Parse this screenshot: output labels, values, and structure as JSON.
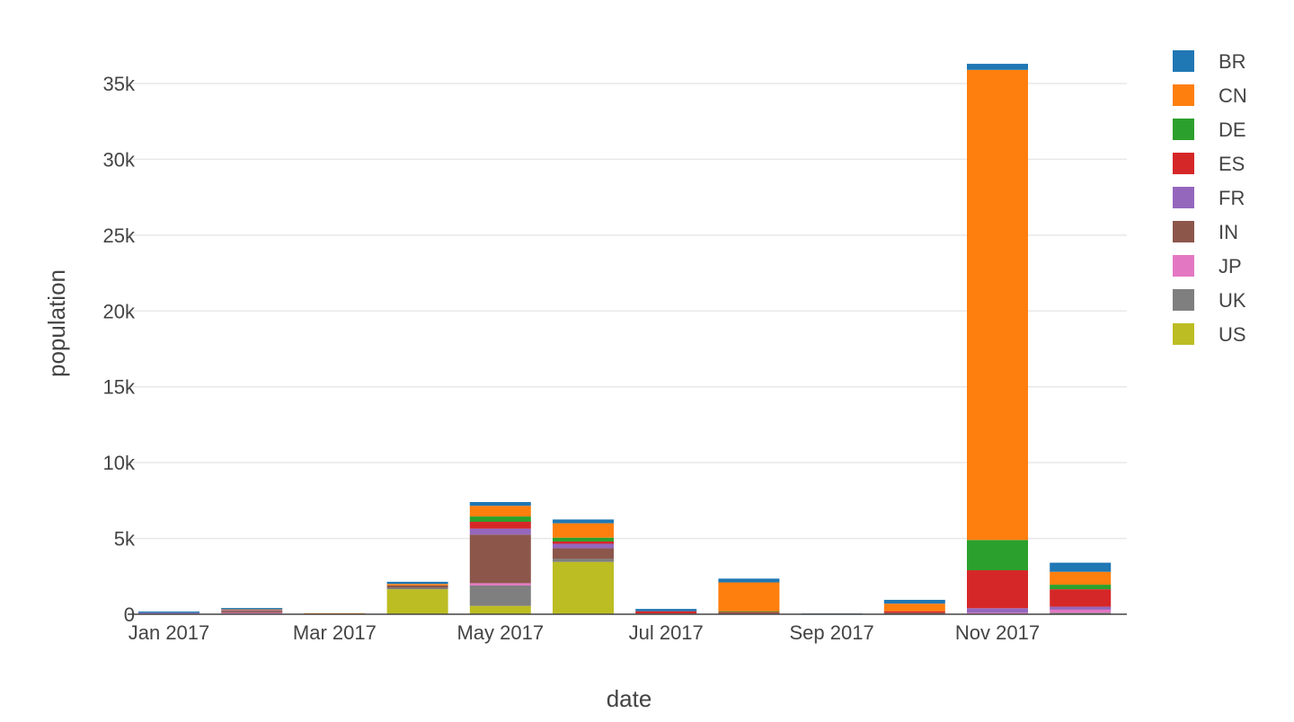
{
  "chart_data": {
    "type": "bar",
    "barmode": "stack",
    "xlabel": "date",
    "ylabel": "population",
    "ylim": [
      0,
      36500
    ],
    "x_tick_labels": [
      "Jan 2017",
      "Mar 2017",
      "May 2017",
      "Jul 2017",
      "Sep 2017",
      "Nov 2017"
    ],
    "y_tick_labels": [
      "0",
      "5k",
      "10k",
      "15k",
      "20k",
      "25k",
      "30k",
      "35k"
    ],
    "y_ticks": [
      0,
      5000,
      10000,
      15000,
      20000,
      25000,
      30000,
      35000
    ],
    "categories": [
      "2017-01",
      "2017-02",
      "2017-03",
      "2017-04",
      "2017-05",
      "2017-06",
      "2017-07",
      "2017-08",
      "2017-09",
      "2017-10",
      "2017-11",
      "2017-12"
    ],
    "grid": true,
    "legend_position": "top-right",
    "series": [
      {
        "name": "US",
        "color": "#bcbd22",
        "values": [
          0,
          0,
          0,
          1650,
          550,
          3450,
          0,
          0,
          0,
          0,
          0,
          0
        ]
      },
      {
        "name": "UK",
        "color": "#7f7f7f",
        "values": [
          0,
          40,
          0,
          100,
          1350,
          200,
          0,
          0,
          0,
          0,
          0,
          100
        ]
      },
      {
        "name": "JP",
        "color": "#e377c2",
        "values": [
          0,
          60,
          0,
          0,
          150,
          0,
          0,
          0,
          0,
          0,
          100,
          200
        ]
      },
      {
        "name": "IN",
        "color": "#8c564b",
        "values": [
          0,
          120,
          0,
          150,
          3200,
          700,
          50,
          100,
          0,
          100,
          0,
          0
        ]
      },
      {
        "name": "FR",
        "color": "#9467bd",
        "values": [
          100,
          50,
          0,
          0,
          400,
          300,
          0,
          0,
          0,
          0,
          300,
          200
        ]
      },
      {
        "name": "ES",
        "color": "#d62728",
        "values": [
          0,
          0,
          0,
          0,
          450,
          150,
          150,
          50,
          0,
          100,
          2500,
          1150
        ]
      },
      {
        "name": "DE",
        "color": "#2ca02c",
        "values": [
          0,
          0,
          0,
          0,
          350,
          250,
          0,
          50,
          0,
          0,
          2000,
          300
        ]
      },
      {
        "name": "CN",
        "color": "#ff7f0e",
        "values": [
          0,
          50,
          70,
          100,
          700,
          950,
          0,
          1900,
          0,
          500,
          31000,
          850
        ]
      },
      {
        "name": "BR",
        "color": "#1f77b4",
        "values": [
          80,
          90,
          0,
          140,
          250,
          250,
          150,
          250,
          50,
          250,
          400,
          600
        ]
      }
    ],
    "legend_order": [
      "BR",
      "CN",
      "DE",
      "ES",
      "FR",
      "IN",
      "JP",
      "UK",
      "US"
    ]
  }
}
